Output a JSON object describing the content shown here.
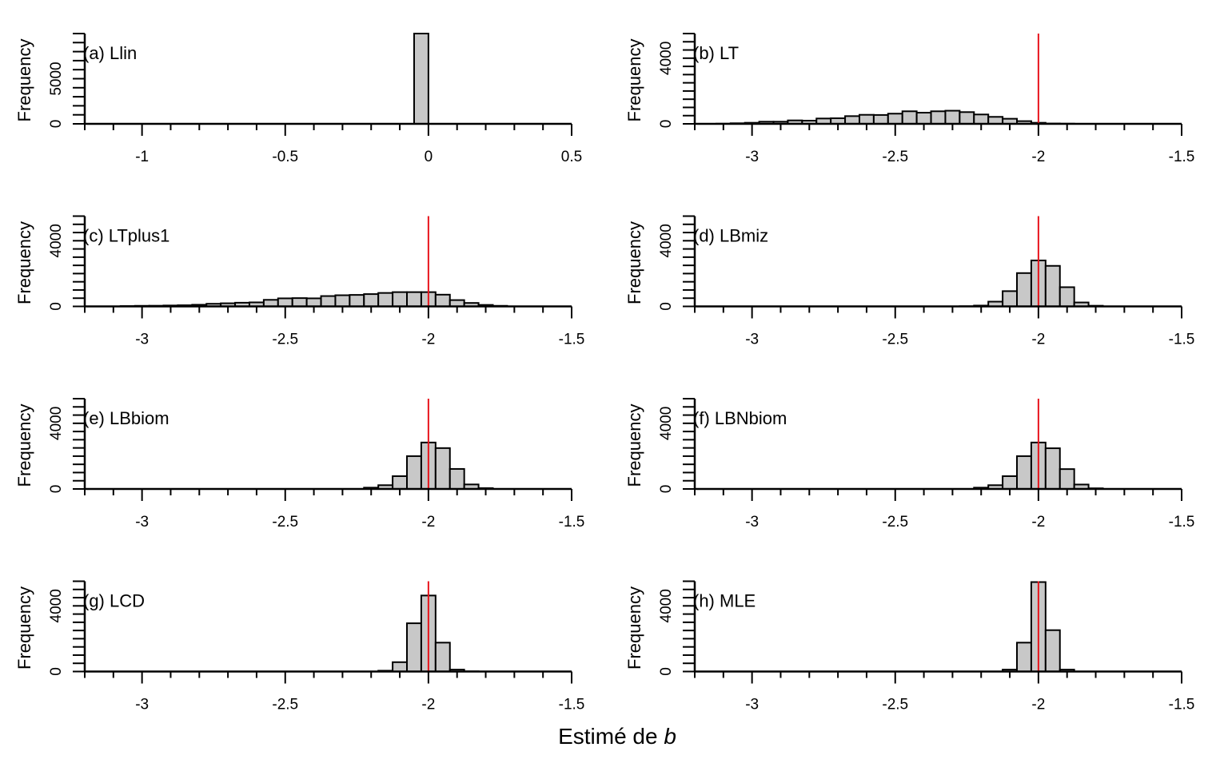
{
  "chart_data": {
    "type": "bar",
    "figure_xlabel_prefix": "Estimé de ",
    "figure_xlabel_var": "b",
    "reference_line_color": "#e8141c",
    "bar_fill": "#c8c8c8",
    "bin_width": 0.05,
    "panels": [
      {
        "id": "a",
        "title": "(a) Llin",
        "ylabel": "Frequency",
        "xlim": [
          -1.2,
          0.5
        ],
        "ylim": [
          0,
          10000
        ],
        "x_major_ticks": [
          -1,
          -0.5,
          0,
          0.5
        ],
        "x_tick_labels": [
          "-1",
          "-0.5",
          "0",
          "0.5"
        ],
        "x_minor_step": 0.1,
        "y_tick_labels": [
          0,
          5000
        ],
        "y_minor_step": 1000,
        "reference_line": null,
        "bins": [
          {
            "left": -0.05,
            "right": 0.0,
            "count": 10000
          }
        ]
      },
      {
        "id": "b",
        "title": "(b) LT",
        "ylabel": "Frequency",
        "xlim": [
          -3.2,
          -1.5
        ],
        "ylim": [
          0,
          5500
        ],
        "x_major_ticks": [
          -3,
          -2.5,
          -2,
          -1.5
        ],
        "x_tick_labels": [
          "-3",
          "-2.5",
          "-2",
          "-1.5"
        ],
        "x_minor_step": 0.1,
        "y_tick_labels": [
          0,
          4000
        ],
        "y_minor_step": 500,
        "reference_line": -2,
        "bin_centers": [
          -3.1,
          -3.05,
          -3.0,
          -2.95,
          -2.9,
          -2.85,
          -2.8,
          -2.75,
          -2.7,
          -2.65,
          -2.6,
          -2.55,
          -2.5,
          -2.45,
          -2.4,
          -2.35,
          -2.3,
          -2.25,
          -2.2,
          -2.15,
          -2.1,
          -2.05,
          -2.0,
          -1.95,
          -1.9
        ],
        "counts": [
          10,
          35,
          65,
          130,
          130,
          210,
          195,
          325,
          340,
          470,
          550,
          540,
          620,
          765,
          680,
          765,
          800,
          715,
          570,
          425,
          310,
          165,
          65,
          20,
          10
        ]
      },
      {
        "id": "c",
        "title": "(c) LTplus1",
        "ylabel": "Frequency",
        "xlim": [
          -3.2,
          -1.5
        ],
        "ylim": [
          0,
          5500
        ],
        "x_major_ticks": [
          -3,
          -2.5,
          -2,
          -1.5
        ],
        "x_tick_labels": [
          "-3",
          "-2.5",
          "-2",
          "-1.5"
        ],
        "x_minor_step": 0.1,
        "y_tick_labels": [
          0,
          4000
        ],
        "y_minor_step": 500,
        "reference_line": -2,
        "bin_centers": [
          -3.05,
          -3.0,
          -2.95,
          -2.9,
          -2.85,
          -2.8,
          -2.75,
          -2.7,
          -2.65,
          -2.6,
          -2.55,
          -2.5,
          -2.45,
          -2.4,
          -2.35,
          -2.3,
          -2.25,
          -2.2,
          -2.15,
          -2.1,
          -2.05,
          -2.0,
          -1.95,
          -1.9,
          -1.85,
          -1.8,
          -1.75
        ],
        "counts": [
          20,
          35,
          40,
          55,
          70,
          100,
          160,
          190,
          225,
          245,
          400,
          490,
          505,
          490,
          630,
          680,
          700,
          750,
          820,
          870,
          870,
          870,
          715,
          385,
          210,
          90,
          35
        ]
      },
      {
        "id": "d",
        "title": "(d) LBmiz",
        "ylabel": "Frequency",
        "xlim": [
          -3.2,
          -1.5
        ],
        "ylim": [
          0,
          5500
        ],
        "x_major_ticks": [
          -3,
          -2.5,
          -2,
          -1.5
        ],
        "x_tick_labels": [
          "-3",
          "-2.5",
          "-2",
          "-1.5"
        ],
        "x_minor_step": 0.1,
        "y_tick_labels": [
          0,
          4000
        ],
        "y_minor_step": 500,
        "reference_line": -2,
        "bin_centers": [
          -2.25,
          -2.2,
          -2.15,
          -2.1,
          -2.05,
          -2.0,
          -1.95,
          -1.9,
          -1.85,
          -1.8
        ],
        "counts": [
          10,
          50,
          290,
          930,
          2030,
          2800,
          2470,
          1170,
          240,
          40
        ]
      },
      {
        "id": "e",
        "title": "(e) LBbiom",
        "ylabel": "Frequency",
        "xlim": [
          -3.2,
          -1.5
        ],
        "ylim": [
          0,
          5500
        ],
        "x_major_ticks": [
          -3,
          -2.5,
          -2,
          -1.5
        ],
        "x_tick_labels": [
          "-3",
          "-2.5",
          "-2",
          "-1.5"
        ],
        "x_minor_step": 0.1,
        "y_tick_labels": [
          0,
          4000
        ],
        "y_minor_step": 500,
        "reference_line": -2,
        "bin_centers": [
          -2.2,
          -2.15,
          -2.1,
          -2.05,
          -2.0,
          -1.95,
          -1.9,
          -1.85,
          -1.8
        ],
        "counts": [
          80,
          230,
          780,
          2000,
          2830,
          2490,
          1220,
          275,
          50
        ]
      },
      {
        "id": "f",
        "title": "(f) LBNbiom",
        "ylabel": "Frequency",
        "xlim": [
          -3.2,
          -1.5
        ],
        "ylim": [
          0,
          5500
        ],
        "x_major_ticks": [
          -3,
          -2.5,
          -2,
          -1.5
        ],
        "x_tick_labels": [
          "-3",
          "-2.5",
          "-2",
          "-1.5"
        ],
        "x_minor_step": 0.1,
        "y_tick_labels": [
          0,
          4000
        ],
        "y_minor_step": 500,
        "reference_line": -2,
        "bin_centers": [
          -2.2,
          -2.15,
          -2.1,
          -2.05,
          -2.0,
          -1.95,
          -1.9,
          -1.85,
          -1.8
        ],
        "counts": [
          80,
          230,
          780,
          2000,
          2830,
          2480,
          1210,
          270,
          40
        ]
      },
      {
        "id": "g",
        "title": "(g) LCD",
        "ylabel": "Frequency",
        "xlim": [
          -3.2,
          -1.5
        ],
        "ylim": [
          0,
          5500
        ],
        "x_major_ticks": [
          -3,
          -2.5,
          -2,
          -1.5
        ],
        "x_tick_labels": [
          "-3",
          "-2.5",
          "-2",
          "-1.5"
        ],
        "x_minor_step": 0.1,
        "y_tick_labels": [
          0,
          4000
        ],
        "y_minor_step": 500,
        "reference_line": -2,
        "bin_centers": [
          -2.15,
          -2.1,
          -2.05,
          -2.0,
          -1.95,
          -1.9,
          -1.85
        ],
        "counts": [
          50,
          570,
          2940,
          4630,
          1760,
          115,
          10
        ]
      },
      {
        "id": "h",
        "title": "(h) MLE",
        "ylabel": "Frequency",
        "xlim": [
          -3.2,
          -1.5
        ],
        "ylim": [
          0,
          5500
        ],
        "x_major_ticks": [
          -3,
          -2.5,
          -2,
          -1.5
        ],
        "x_tick_labels": [
          "-3",
          "-2.5",
          "-2",
          "-1.5"
        ],
        "x_minor_step": 0.1,
        "y_tick_labels": [
          0,
          4000
        ],
        "y_minor_step": 500,
        "reference_line": -2,
        "bin_centers": [
          -2.1,
          -2.05,
          -2.0,
          -1.95,
          -1.9
        ],
        "counts": [
          115,
          1760,
          5450,
          2520,
          115
        ]
      }
    ]
  }
}
